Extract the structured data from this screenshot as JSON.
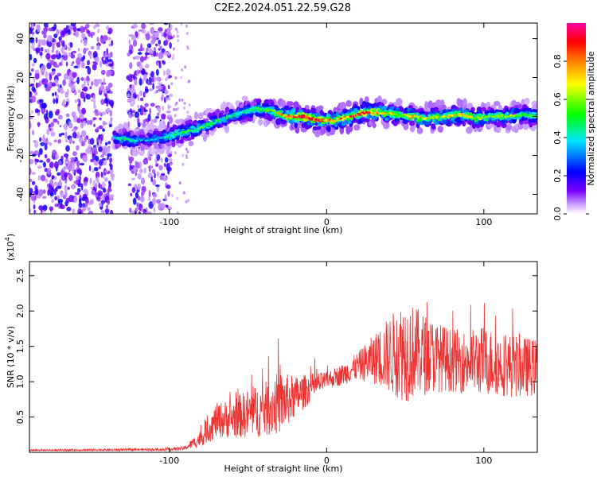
{
  "title": "C2E2.2024.051.22.59.G28",
  "colors": {
    "snr_line": "#ee3333",
    "background": "#ffffff",
    "axis": "#000000"
  },
  "chart_data": [
    {
      "type": "heatmap",
      "title": "C2E2.2024.051.22.59.G28",
      "xlabel": "Height of straight line (km)",
      "ylabel": "Frequency (Hz)",
      "xlim": [
        -189,
        134
      ],
      "ylim": [
        -50,
        48
      ],
      "x_ticks": [
        -100,
        0,
        100
      ],
      "x_tick_labels": [
        "-100",
        "0",
        "100"
      ],
      "y_ticks": [
        -40,
        -20,
        0,
        20,
        40
      ],
      "y_tick_labels": [
        "-40",
        "-20",
        "0",
        "20",
        "40"
      ],
      "colorbar": {
        "label": "Normalized spectral amplitude",
        "range": [
          0,
          1
        ],
        "ticks": [
          0.0,
          0.2,
          0.4,
          0.6,
          0.8
        ],
        "tick_labels": [
          "0.0",
          "0.2",
          "0.4",
          "0.6",
          "0.8"
        ],
        "colormap": [
          "#ffffff",
          "#7a00ff",
          "#0000ff",
          "#00e5ff",
          "#00ff00",
          "#ffff00",
          "#ff8000",
          "#ff0000",
          "#ff00a0"
        ]
      },
      "noise_regions": [
        [
          -189,
          -136
        ],
        [
          -126,
          -99
        ]
      ],
      "ridge": {
        "x": [
          -135,
          -125,
          -115,
          -105,
          -95,
          -85,
          -75,
          -65,
          -55,
          -45,
          -35,
          -25,
          -15,
          -5,
          5,
          15,
          25,
          35,
          45,
          55,
          65,
          75,
          85,
          95,
          105,
          115,
          125,
          134
        ],
        "y": [
          -11,
          -12,
          -12,
          -11,
          -9,
          -7,
          -4,
          -1,
          2,
          4,
          3,
          0,
          0,
          -2,
          -2,
          0,
          2,
          2,
          1,
          0,
          -1,
          0,
          1,
          -1,
          0,
          0,
          1,
          0
        ],
        "amplitude": [
          0.4,
          0.45,
          0.35,
          0.4,
          0.5,
          0.55,
          0.5,
          0.45,
          0.45,
          0.5,
          0.6,
          0.8,
          0.9,
          0.85,
          0.8,
          0.85,
          0.9,
          0.75,
          0.65,
          0.7,
          0.65,
          0.7,
          0.7,
          0.65,
          0.6,
          0.6,
          0.55,
          0.5
        ]
      }
    },
    {
      "type": "line",
      "xlabel": "Height of straight line (km)",
      "ylabel": "SNR (10 * v/v)",
      "y_scale_label": "(x10",
      "y_scale_exp": "4",
      "xlim": [
        -189,
        134
      ],
      "ylim": [
        0,
        2.7
      ],
      "x_ticks": [
        -100,
        0,
        100
      ],
      "x_tick_labels": [
        "-100",
        "0",
        "100"
      ],
      "y_ticks": [
        0.5,
        1.0,
        1.5,
        2.0,
        2.5
      ],
      "y_tick_labels": [
        "0.5",
        "1.0",
        "1.5",
        "2.0",
        "2.5"
      ],
      "envelope": {
        "x": [
          -189,
          -100,
          -90,
          -80,
          -70,
          -60,
          -50,
          -40,
          -30,
          -20,
          -10,
          0,
          10,
          20,
          30,
          40,
          50,
          60,
          70,
          80,
          90,
          100,
          110,
          120,
          134
        ],
        "mean": [
          0.03,
          0.04,
          0.06,
          0.2,
          0.45,
          0.48,
          0.55,
          0.6,
          0.7,
          0.78,
          0.92,
          1.02,
          1.1,
          1.22,
          1.32,
          1.38,
          1.45,
          1.4,
          1.35,
          1.3,
          1.28,
          1.3,
          1.25,
          1.22,
          1.2
        ],
        "spread": [
          0.01,
          0.02,
          0.03,
          0.12,
          0.25,
          0.28,
          0.35,
          0.38,
          0.45,
          0.3,
          0.2,
          0.12,
          0.15,
          0.2,
          0.35,
          0.55,
          0.75,
          0.6,
          0.5,
          0.45,
          0.45,
          0.5,
          0.45,
          0.45,
          0.4
        ]
      }
    }
  ]
}
